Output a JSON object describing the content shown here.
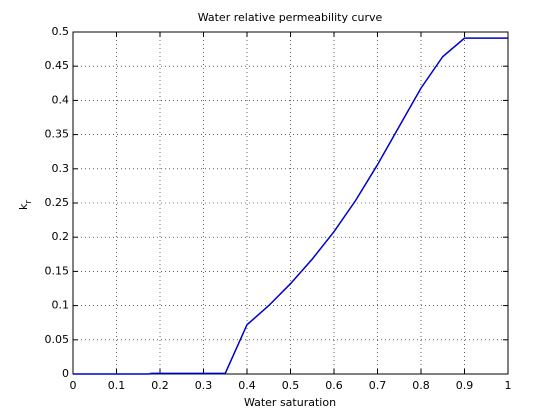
{
  "chart_data": {
    "type": "line",
    "title": "Water relative permeability curve",
    "xlabel": "Water saturation",
    "ylabel": "k",
    "ylabel_subscript": "r",
    "x": [
      0,
      0.175,
      0.18,
      0.35,
      0.4,
      0.45,
      0.5,
      0.55,
      0.6,
      0.65,
      0.7,
      0.75,
      0.8,
      0.85,
      0.9,
      1
    ],
    "series": [
      {
        "color": "#0000cc",
        "values": [
          0,
          0,
          0.001,
          0.001,
          0.072,
          0.1,
          0.132,
          0.168,
          0.208,
          0.254,
          0.306,
          0.362,
          0.418,
          0.464,
          0.491,
          0.491
        ]
      }
    ],
    "xlim": [
      0,
      1
    ],
    "xticks": [
      0,
      0.1,
      0.2,
      0.3,
      0.4,
      0.5,
      0.6,
      0.7,
      0.8,
      0.9,
      1
    ],
    "ylim": [
      0,
      0.5
    ],
    "yticks": [
      0,
      0.05,
      0.1,
      0.15,
      0.2,
      0.25,
      0.3,
      0.35,
      0.4,
      0.45,
      0.5
    ],
    "grid": true
  }
}
